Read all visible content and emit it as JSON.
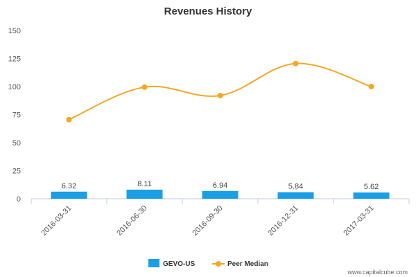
{
  "chart_data": {
    "type": "bar",
    "title": "Revenues History",
    "categories": [
      "2016-03-31",
      "2016-06-30",
      "2016-09-30",
      "2016-12-31",
      "2017-03-31"
    ],
    "series": [
      {
        "name": "GEVO-US",
        "type": "bar",
        "color": "#1a9fe5",
        "values": [
          6.32,
          8.11,
          6.94,
          5.84,
          5.62
        ],
        "labels": [
          "6.32",
          "8.11",
          "6.94",
          "5.84",
          "5.62"
        ]
      },
      {
        "name": "Peer Median",
        "type": "line",
        "color": "#f5a623",
        "values": [
          70.5,
          99.5,
          92,
          120.5,
          100
        ]
      }
    ],
    "ylim": [
      0,
      150
    ],
    "yticks": [
      "0",
      "25",
      "50",
      "75",
      "100",
      "125",
      "150"
    ],
    "grid": false,
    "legend": "bottom-center"
  },
  "credit": "www.capitalcube.com"
}
